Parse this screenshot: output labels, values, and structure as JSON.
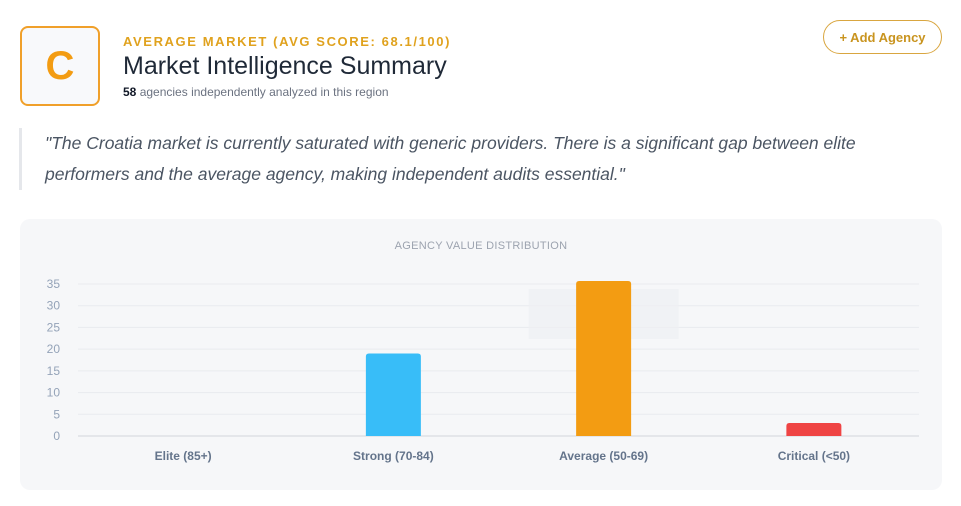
{
  "header": {
    "grade": "C",
    "eyebrow": "AVERAGE MARKET (AVG SCORE: 68.1/100)",
    "title": "Market Intelligence Summary",
    "agency_count": "58",
    "subtitle_rest": " agencies independently analyzed in this region",
    "add_button": "+ Add Agency"
  },
  "quote": "\"The Croatia market is currently saturated with generic providers. There is a significant gap between elite performers and the average agency, making independent audits essential.\"",
  "chart_data": {
    "type": "bar",
    "title": "AGENCY VALUE DISTRIBUTION",
    "categories": [
      "Elite (85+)",
      "Strong (70-84)",
      "Average (50-69)",
      "Critical (<50)"
    ],
    "values": [
      0,
      19,
      36,
      3
    ],
    "colors": [
      "#38bdf8",
      "#38bdf8",
      "#f39c12",
      "#ef4444"
    ],
    "ylim": [
      0,
      35
    ],
    "yticks": [
      0,
      5,
      10,
      15,
      20,
      25,
      30,
      35
    ],
    "grid": true,
    "xlabel": "",
    "ylabel": ""
  }
}
